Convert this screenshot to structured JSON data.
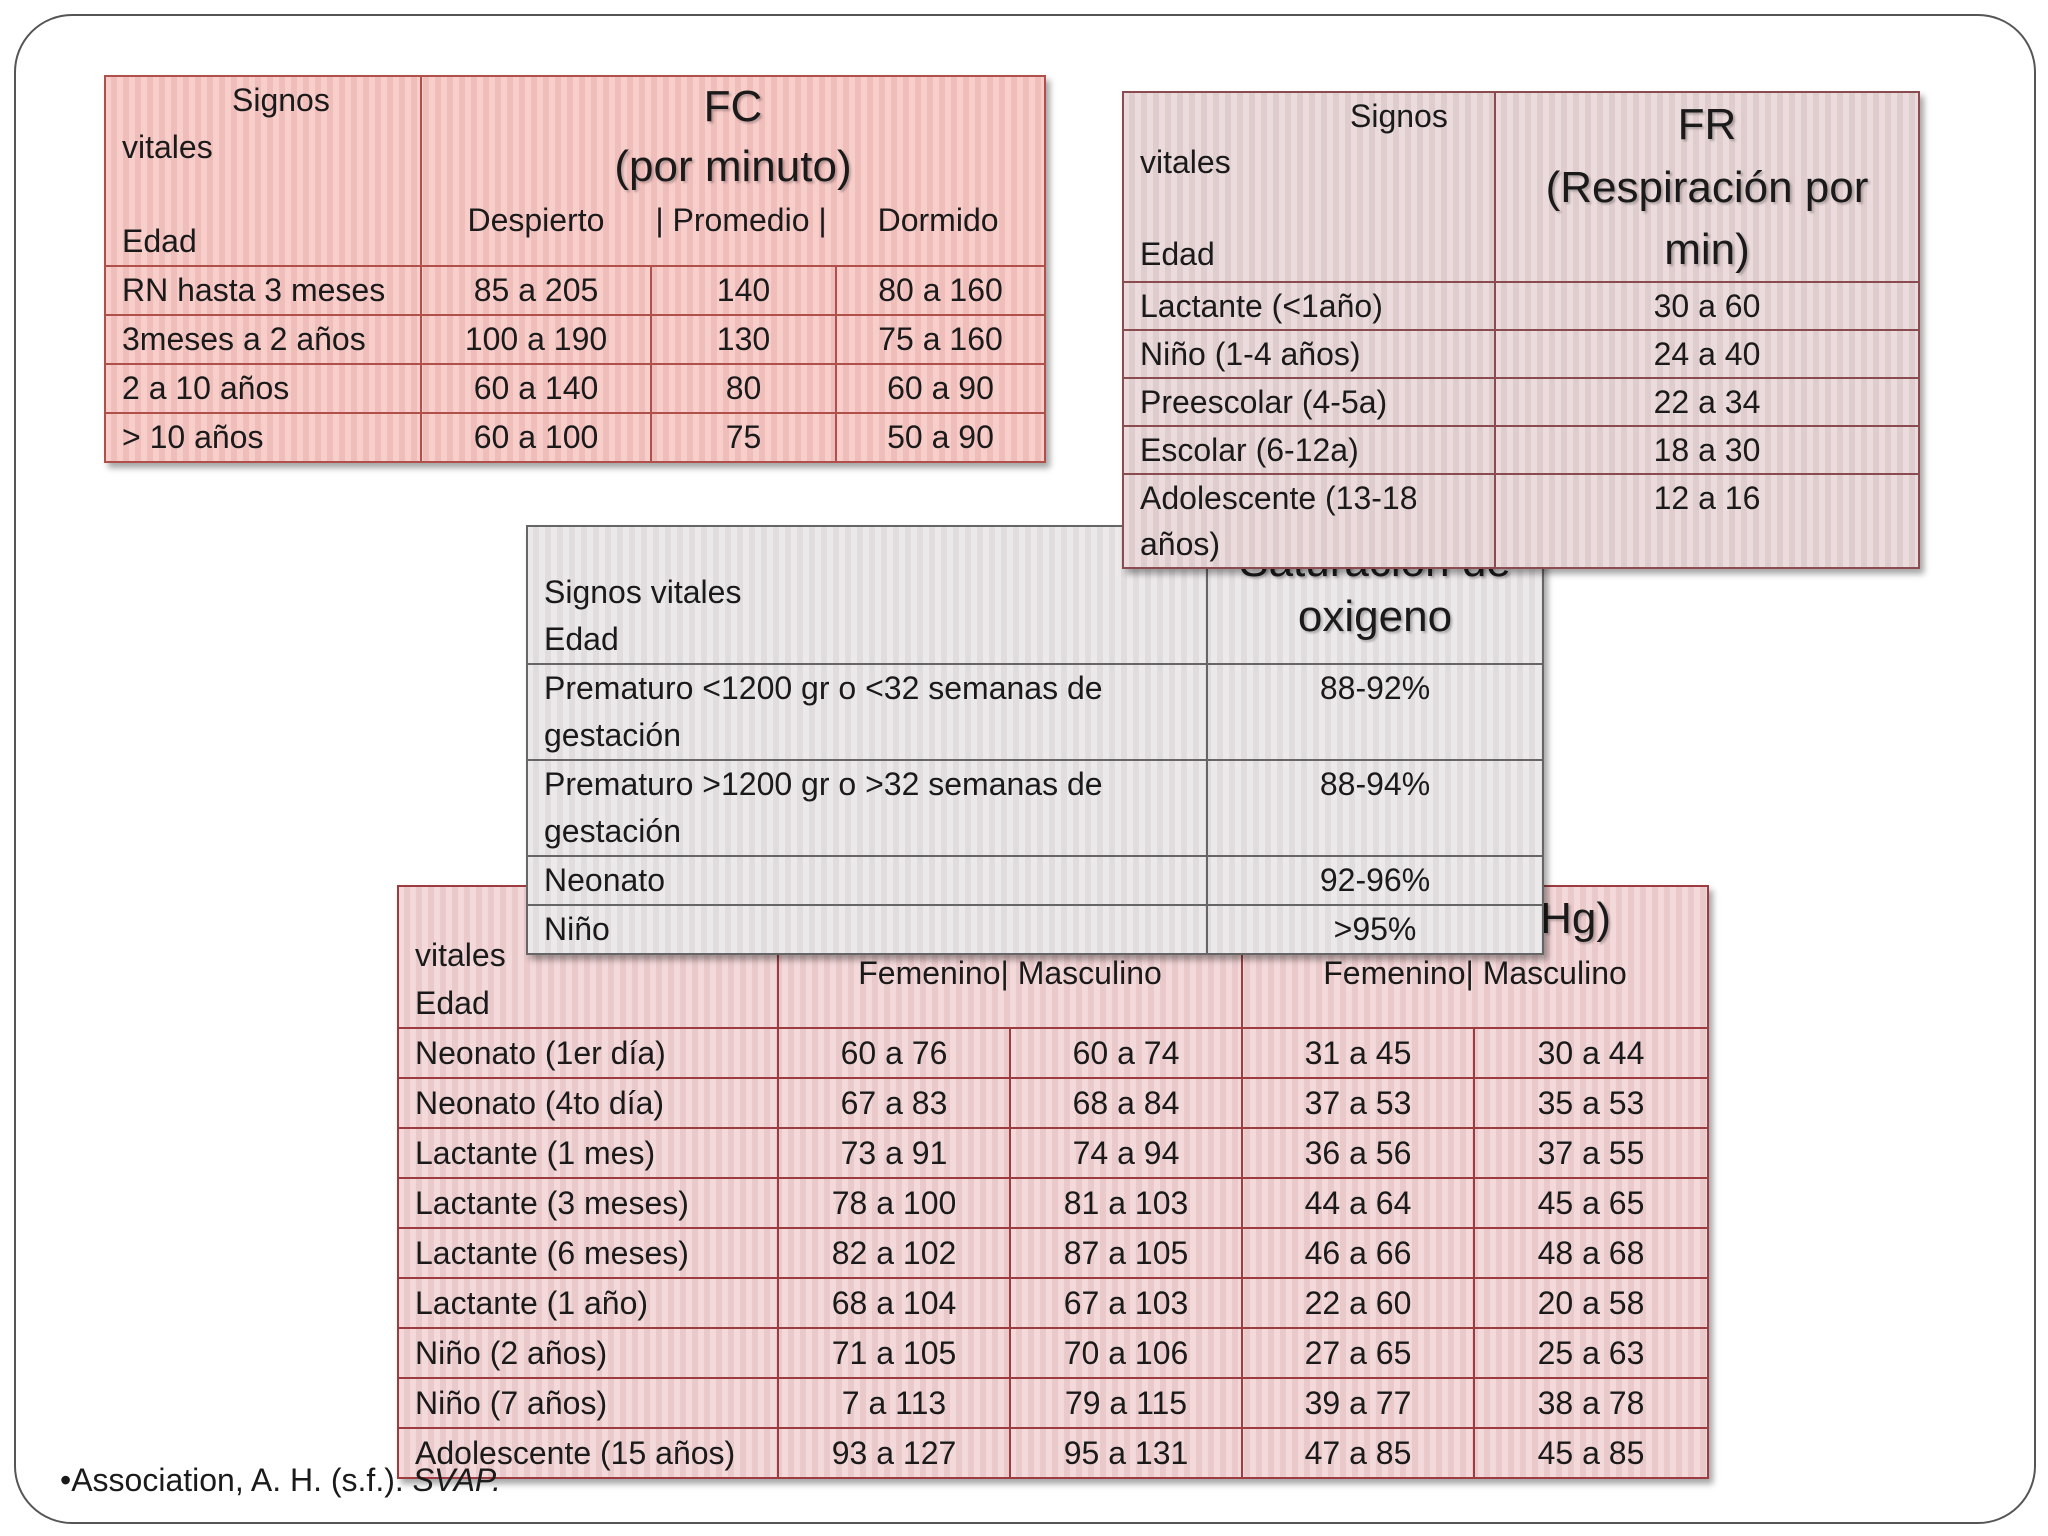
{
  "fc_table": {
    "corner": {
      "signos": "Signos",
      "vitales": "vitales",
      "edad": "Edad"
    },
    "title_line1": "FC",
    "title_line2": "(por minuto)",
    "subheaders": {
      "despierto": "Despierto",
      "promedio": "| Promedio |",
      "dormido": "Dormido"
    },
    "rows": [
      {
        "age": "RN hasta 3 meses",
        "awake": "85 a 205",
        "avg": "140",
        "asleep": "80 a 160"
      },
      {
        "age": "3meses a 2 años",
        "awake": "100 a 190",
        "avg": "130",
        "asleep": "75 a 160"
      },
      {
        "age": "2 a 10 años",
        "awake": "60 a 140",
        "avg": "80",
        "asleep": "60 a 90"
      },
      {
        "age": "> 10 años",
        "awake": "60 a 100",
        "avg": "75",
        "asleep": "50 a 90"
      }
    ]
  },
  "fr_table": {
    "corner": {
      "signos": "Signos",
      "vitales": "vitales",
      "edad": "Edad"
    },
    "title_line1": "FR",
    "title_line2": "(Respiración por",
    "title_line3": "min)",
    "rows": [
      {
        "age": "Lactante (<1año)",
        "value": "30 a 60"
      },
      {
        "age": "Niño (1-4 años)",
        "value": "24 a 40"
      },
      {
        "age": "Preescolar (4-5a)",
        "value": "22 a 34"
      },
      {
        "age": "Escolar (6-12a)",
        "value": "18 a 30"
      },
      {
        "age_line1": "Adolescente (13-18",
        "age_line2": "años)",
        "value": "12 a 16"
      }
    ]
  },
  "sat_table": {
    "corner_line1": "Signos vitales",
    "corner_line2": "Edad",
    "title_partial": "Saturación de",
    "title_line2": "oxigeno",
    "rows": [
      {
        "age_line1": "Prematuro <1200 gr o <32 semanas de",
        "age_line2": "gestación",
        "value": "88-92%"
      },
      {
        "age_line1": "Prematuro >1200 gr o >32 semanas de",
        "age_line2": "gestación",
        "value": "88-94%"
      },
      {
        "age_line1": "Neonato",
        "age_line2": "",
        "value": "92-96%"
      },
      {
        "age_line1": "Niño",
        "age_line2": "",
        "value": ">95%"
      }
    ]
  },
  "bp_table": {
    "corner_line1": "vitales",
    "corner_line2": "Edad",
    "title_partial": "Hg)",
    "sub_left": "Femenino| Masculino",
    "sub_right": "Femenino| Masculino",
    "rows": [
      {
        "age": "Neonato (1er día)",
        "c1": "60 a 76",
        "c2": "60 a 74",
        "c3": "31 a 45",
        "c4": "30 a 44"
      },
      {
        "age": "Neonato (4to día)",
        "c1": "67 a 83",
        "c2": "68 a 84",
        "c3": "37 a 53",
        "c4": "35 a 53"
      },
      {
        "age": "Lactante (1 mes)",
        "c1": "73 a 91",
        "c2": "74 a 94",
        "c3": "36 a 56",
        "c4": "37 a 55"
      },
      {
        "age": "Lactante (3 meses)",
        "c1": "78 a 100",
        "c2": "81 a 103",
        "c3": "44 a 64",
        "c4": "45 a 65"
      },
      {
        "age": "Lactante (6 meses)",
        "c1": "82 a 102",
        "c2": "87 a 105",
        "c3": "46 a 66",
        "c4": "48 a 68"
      },
      {
        "age": "Lactante (1 año)",
        "c1": "68 a 104",
        "c2": "67 a 103",
        "c3": "22 a 60",
        "c4": "20 a 58"
      },
      {
        "age": "Niño (2 años)",
        "c1": "71 a 105",
        "c2": "70 a 106",
        "c3": "27 a 65",
        "c4": "25 a 63"
      },
      {
        "age": "Niño (7 años)",
        "c1": "7 a 113",
        "c2": "79 a 115",
        "c3": "39 a 77",
        "c4": "38 a 78"
      },
      {
        "age": "Adolescente (15 años)",
        "c1": "93 a 127",
        "c2": "95 a 131",
        "c3": "47 a 85",
        "c4": "45 a 85"
      }
    ]
  },
  "citation": {
    "text": "•Association, A. H. (s.f.). ",
    "italic": "SVAP."
  }
}
